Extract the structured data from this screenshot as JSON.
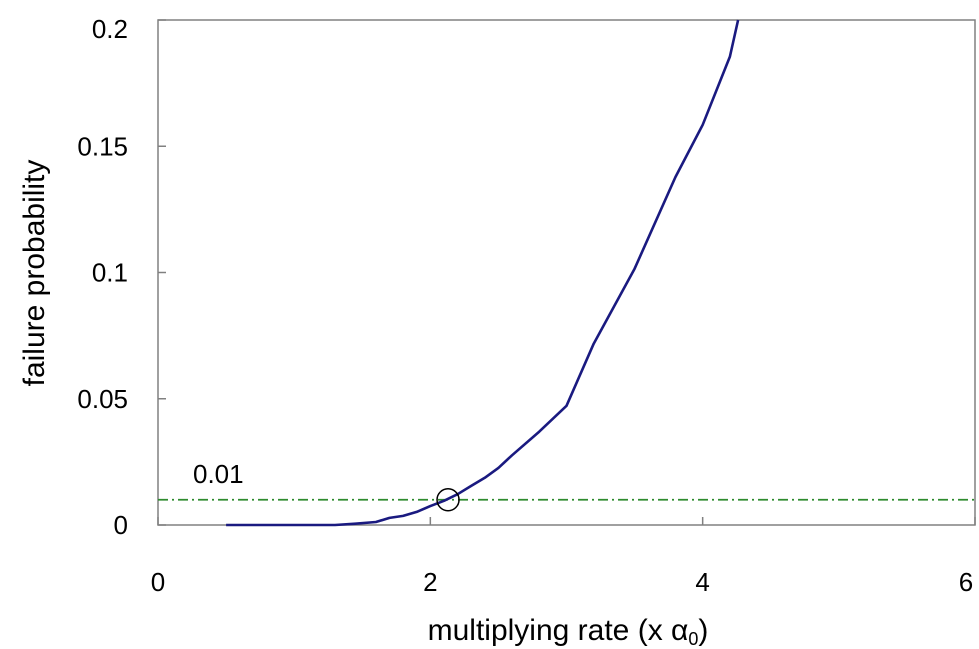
{
  "chart_data": {
    "type": "line",
    "xlabel_prefix": "multiplying rate (x ",
    "xlabel_symbol": "α",
    "xlabel_subscript": "0",
    "xlabel_suffix": ")",
    "ylabel": "failure probability",
    "xlim": [
      0,
      6
    ],
    "ylim": [
      0,
      0.2
    ],
    "x_ticks": [
      0,
      2,
      4,
      6
    ],
    "x_tick_labels": [
      "0",
      "2",
      "4",
      "6"
    ],
    "y_ticks": [
      0,
      0.05,
      0.1,
      0.15,
      0.2
    ],
    "y_tick_labels": [
      "0",
      "0.05",
      "0.1",
      "0.15",
      "0.2"
    ],
    "grid": false,
    "series": [
      {
        "color": "#1a1a80",
        "x": [
          0.5,
          0.8,
          1.1,
          1.3,
          1.45,
          1.6,
          1.7,
          1.8,
          1.9,
          2.0,
          2.1,
          2.2,
          2.3,
          2.4,
          2.5,
          2.6,
          2.8,
          3.0,
          3.2,
          3.5,
          3.8,
          4.0,
          4.2,
          4.26
        ],
        "y": [
          0,
          0,
          0,
          0,
          0.0005,
          0.0012,
          0.0028,
          0.0036,
          0.0052,
          0.0075,
          0.0096,
          0.0122,
          0.0155,
          0.0187,
          0.0226,
          0.0276,
          0.037,
          0.0472,
          0.0718,
          0.1015,
          0.1378,
          0.1585,
          0.1855,
          0.2
        ]
      }
    ],
    "reference_line": {
      "y": 0.01,
      "label": "0.01",
      "color": "#2e8b2e",
      "style": "dash-dot"
    },
    "marker": {
      "x": 2.13,
      "y": 0.01,
      "shape": "open-circle"
    }
  }
}
